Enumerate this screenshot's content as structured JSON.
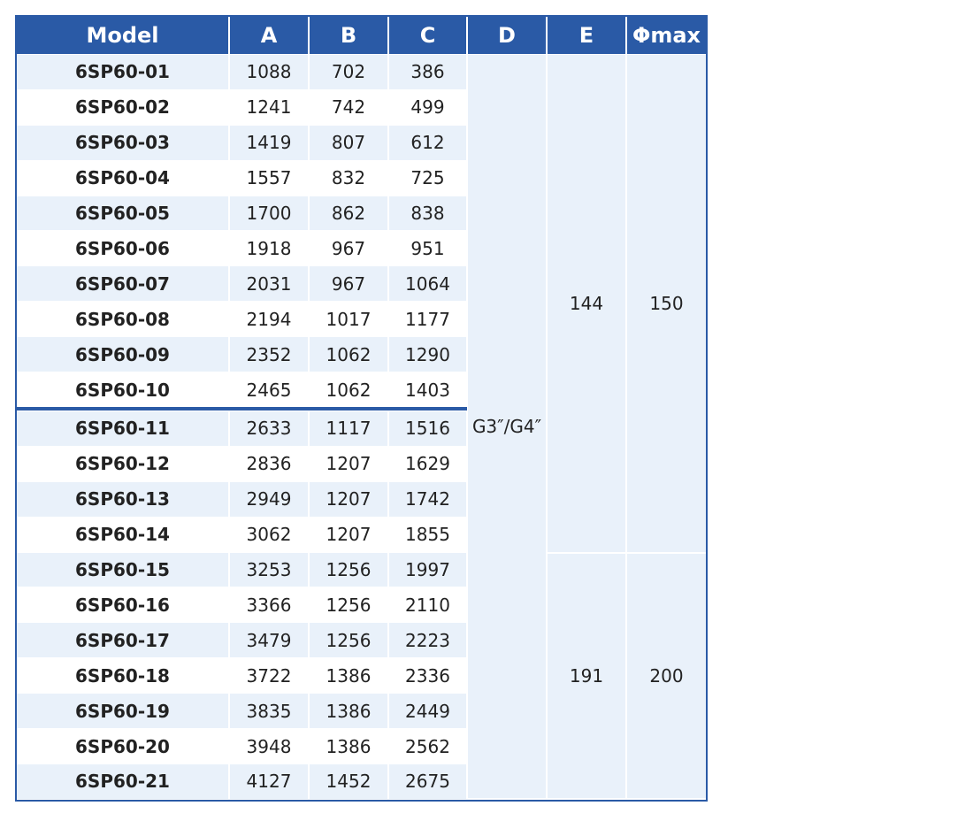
{
  "table": {
    "header": [
      "Model",
      "A",
      "B",
      "C",
      "D",
      "E",
      "Φmax"
    ],
    "rows": [
      [
        "6SP60-01",
        1088,
        702,
        386
      ],
      [
        "6SP60-02",
        1241,
        742,
        499
      ],
      [
        "6SP60-03",
        1419,
        807,
        612
      ],
      [
        "6SP60-04",
        1557,
        832,
        725
      ],
      [
        "6SP60-05",
        1700,
        862,
        838
      ],
      [
        "6SP60-06",
        1918,
        967,
        951
      ],
      [
        "6SP60-07",
        2031,
        967,
        1064
      ],
      [
        "6SP60-08",
        2194,
        1017,
        1177
      ],
      [
        "6SP60-09",
        2352,
        1062,
        1290
      ],
      [
        "6SP60-10",
        2465,
        1062,
        1403
      ],
      [
        "6SP60-11",
        2633,
        1117,
        1516
      ],
      [
        "6SP60-12",
        2836,
        1207,
        1629
      ],
      [
        "6SP60-13",
        2949,
        1207,
        1742
      ],
      [
        "6SP60-14",
        3062,
        1207,
        1855
      ],
      [
        "6SP60-15",
        3253,
        1256,
        1997
      ],
      [
        "6SP60-16",
        3366,
        1256,
        2110
      ],
      [
        "6SP60-17",
        3479,
        1256,
        2223
      ],
      [
        "6SP60-18",
        3722,
        1386,
        2336
      ],
      [
        "6SP60-19",
        3835,
        1386,
        2449
      ],
      [
        "6SP60-20",
        3948,
        1386,
        2562
      ],
      [
        "6SP60-21",
        4127,
        1452,
        2675
      ]
    ],
    "d": "G3″/G4″",
    "groups": [
      {
        "e": 144,
        "phimax": 150
      },
      {
        "e": 191,
        "phimax": 200
      }
    ]
  }
}
